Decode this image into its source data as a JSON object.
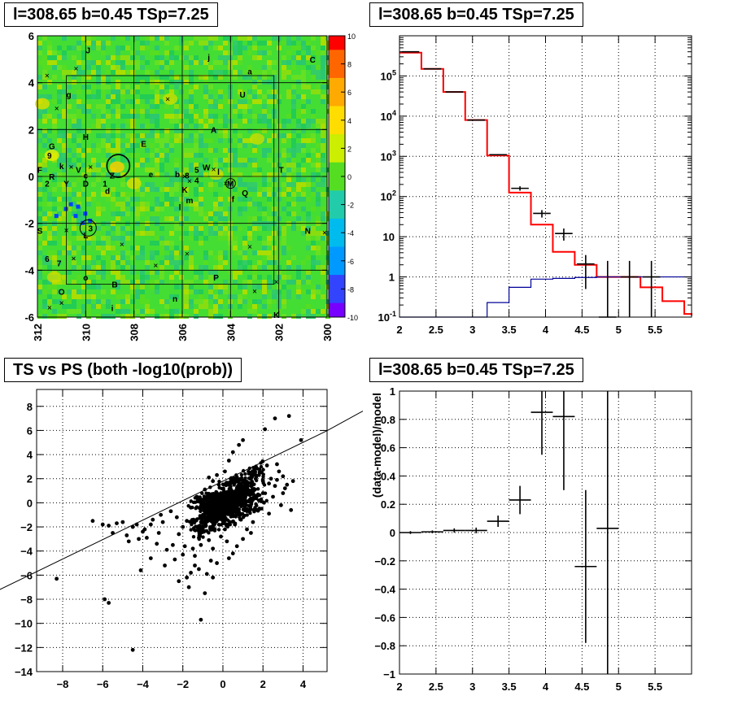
{
  "panels": {
    "sky_title": "l=308.65 b=0.45 TSp=7.25",
    "spectrum_title": "l=308.65 b=0.45 TSp=7.25",
    "scatter_title": "TS vs PS (both -log10(prob))",
    "residual_title": "l=308.65 b=0.45 TSp=7.25"
  },
  "colors": {
    "model": "#ff0000",
    "background_model": "#000099",
    "data": "#000000"
  },
  "chart_data": [
    {
      "type": "heatmap",
      "title": "l=308.65 b=0.45 TSp=7.25",
      "x_ticks": [
        "312",
        "310",
        "308",
        "306",
        "304",
        "302",
        "300"
      ],
      "xlim": [
        312,
        300
      ],
      "y_ticks": [
        "6",
        "4",
        "2",
        "0",
        "-2",
        "-4",
        "-6"
      ],
      "ylim": [
        -6,
        6
      ],
      "colorbar_ticks": [
        "10",
        "8",
        "6",
        "4",
        "2",
        "0",
        "-2",
        "-4",
        "-6",
        "-8",
        "-10"
      ],
      "zlim": [
        -10,
        10
      ],
      "grid": true,
      "labels": [
        {
          "t": "J",
          "l": 309.9,
          "b": 5.4
        },
        {
          "t": "j",
          "l": 304.9,
          "b": 5.1
        },
        {
          "t": "C",
          "l": 300.6,
          "b": 5.0
        },
        {
          "t": "a",
          "l": 303.2,
          "b": 4.5
        },
        {
          "t": "g",
          "l": 310.7,
          "b": 3.5
        },
        {
          "t": "U",
          "l": 303.5,
          "b": 3.5
        },
        {
          "t": "A",
          "l": 304.7,
          "b": 2.0
        },
        {
          "t": "H",
          "l": 310.0,
          "b": 1.7
        },
        {
          "t": "E",
          "l": 307.6,
          "b": 1.4
        },
        {
          "t": "G",
          "l": 311.4,
          "b": 1.3
        },
        {
          "t": "9",
          "l": 311.5,
          "b": 0.9
        },
        {
          "t": "F",
          "l": 311.9,
          "b": 0.3
        },
        {
          "t": "k",
          "l": 311.0,
          "b": 0.45
        },
        {
          "t": "V",
          "l": 310.3,
          "b": 0.3
        },
        {
          "t": "W",
          "l": 305.0,
          "b": 0.4
        },
        {
          "t": "5",
          "l": 305.4,
          "b": 0.3
        },
        {
          "t": "T",
          "l": 301.9,
          "b": 0.3
        },
        {
          "t": "R",
          "l": 311.4,
          "b": 0.0
        },
        {
          "t": "c",
          "l": 310.0,
          "b": 0.05
        },
        {
          "t": "Z",
          "l": 308.9,
          "b": 0.05
        },
        {
          "t": "e",
          "l": 307.3,
          "b": 0.1
        },
        {
          "t": "b",
          "l": 306.2,
          "b": 0.1
        },
        {
          "t": "8",
          "l": 305.8,
          "b": 0.05
        },
        {
          "t": "l",
          "l": 304.5,
          "b": 0.2
        },
        {
          "t": "4",
          "l": 305.4,
          "b": -0.15
        },
        {
          "t": "2",
          "l": 311.6,
          "b": -0.3
        },
        {
          "t": "Y",
          "l": 310.8,
          "b": -0.3
        },
        {
          "t": "D",
          "l": 310.0,
          "b": -0.3
        },
        {
          "t": "1",
          "l": 309.2,
          "b": -0.3
        },
        {
          "t": "M",
          "l": 304.0,
          "b": -0.3
        },
        {
          "t": "d",
          "l": 309.1,
          "b": -0.6
        },
        {
          "t": "K",
          "l": 305.9,
          "b": -0.55
        },
        {
          "t": "Q",
          "l": 303.4,
          "b": -0.7
        },
        {
          "t": "m",
          "l": 305.7,
          "b": -1.0
        },
        {
          "t": "f",
          "l": 303.9,
          "b": -0.95
        },
        {
          "t": "l",
          "l": 306.1,
          "b": -1.3
        },
        {
          "t": "S",
          "l": 311.9,
          "b": -2.3
        },
        {
          "t": "3",
          "l": 309.8,
          "b": -2.2
        },
        {
          "t": "N",
          "l": 300.8,
          "b": -2.3
        },
        {
          "t": "L",
          "l": 310.0,
          "b": -2.5
        },
        {
          "t": "6",
          "l": 311.6,
          "b": -3.5
        },
        {
          "t": "7",
          "l": 311.1,
          "b": -3.7
        },
        {
          "t": "o",
          "l": 310.0,
          "b": -4.3
        },
        {
          "t": "B",
          "l": 308.8,
          "b": -4.6
        },
        {
          "t": "P",
          "l": 304.6,
          "b": -4.3
        },
        {
          "t": "O",
          "l": 311.0,
          "b": -4.9
        },
        {
          "t": "n",
          "l": 306.3,
          "b": -5.2
        },
        {
          "t": "i",
          "l": 308.9,
          "b": -5.6
        },
        {
          "t": "K",
          "l": 302.1,
          "b": -5.9
        }
      ]
    },
    {
      "type": "line",
      "title": "l=308.65 b=0.45 TSp=7.25",
      "x_ticks": [
        "2",
        "2.5",
        "3",
        "3.5",
        "4",
        "4.5",
        "5",
        "5.5"
      ],
      "xlim": [
        2,
        6
      ],
      "y_ticks": [
        "10^5",
        "10^4",
        "10^3",
        "10^2",
        "10",
        "1",
        "10^-1"
      ],
      "ylim": [
        0.1,
        1000000
      ],
      "y_scale": "log",
      "grid": true,
      "series": [
        {
          "role": "model",
          "edges": [
            2.0,
            2.3,
            2.6,
            2.9,
            3.2,
            3.5,
            3.8,
            4.1,
            4.4,
            4.7,
            5.0,
            5.3,
            5.6,
            5.9,
            6.0
          ],
          "values": [
            380000,
            150000,
            40000,
            8000,
            1050,
            125,
            20,
            4.2,
            2.0,
            1.0,
            1.0,
            0.55,
            0.25,
            0.12,
            0.11
          ]
        },
        {
          "role": "background_model",
          "edges": [
            2.0,
            2.9,
            3.2,
            3.5,
            3.8,
            4.1,
            4.4,
            4.7,
            5.0,
            5.3,
            5.6,
            6.0
          ],
          "values": [
            0.08,
            0.08,
            0.23,
            0.55,
            0.88,
            0.92,
            0.97,
            1.0,
            1.0,
            1.0,
            1.0,
            1.0
          ]
        },
        {
          "role": "data",
          "points": [
            {
              "x": 2.15,
              "y": 400000,
              "lo": 395000,
              "hi": 405000
            },
            {
              "x": 2.45,
              "y": 150000,
              "lo": 148000,
              "hi": 152000
            },
            {
              "x": 2.75,
              "y": 40000,
              "lo": 39500,
              "hi": 40500
            },
            {
              "x": 3.05,
              "y": 8000,
              "lo": 7900,
              "hi": 8100
            },
            {
              "x": 3.35,
              "y": 1100,
              "lo": 1060,
              "hi": 1140
            },
            {
              "x": 3.65,
              "y": 160,
              "lo": 140,
              "hi": 180
            },
            {
              "x": 3.95,
              "y": 38,
              "lo": 30,
              "hi": 46
            },
            {
              "x": 4.25,
              "y": 12,
              "lo": 8,
              "hi": 16
            },
            {
              "x": 4.55,
              "y": 2.1,
              "lo": 0.5,
              "hi": 3.5
            },
            {
              "x": 4.85,
              "y": 0.1,
              "lo": 0.1,
              "hi": 2.5
            },
            {
              "x": 5.15,
              "y": 1.0,
              "lo": 0.1,
              "hi": 2.5
            },
            {
              "x": 5.45,
              "y": 1.0,
              "lo": 0.1,
              "hi": 2.5
            }
          ]
        }
      ]
    },
    {
      "type": "scatter",
      "title": "TS vs PS (both -log10(prob))",
      "x_ticks": [
        "-8",
        "-6",
        "-4",
        "-2",
        "0",
        "2",
        "4"
      ],
      "xlim": [
        -9.3,
        5.2
      ],
      "y_ticks": [
        "8",
        "6",
        "4",
        "2",
        "0",
        "-2",
        "-4",
        "-6",
        "-8",
        "-10",
        "-12",
        "-14"
      ],
      "ylim": [
        -14,
        9.4
      ],
      "grid": true,
      "fit_line": {
        "slope": 0.9,
        "intercept": 1.3
      },
      "points": [
        [
          -8.3,
          -6.3
        ],
        [
          -6.5,
          -1.5
        ],
        [
          -6,
          -1.8
        ],
        [
          -5.7,
          -1.9
        ],
        [
          -5.3,
          -1.7
        ],
        [
          -5.5,
          -2.5
        ],
        [
          -5,
          -1.6
        ],
        [
          -4.8,
          -2.7
        ],
        [
          -4.5,
          -2.0
        ],
        [
          -4.3,
          -1.8
        ],
        [
          -4.7,
          -3.2
        ],
        [
          -4.2,
          -3.0
        ],
        [
          -3.9,
          -2.2
        ],
        [
          -3.6,
          -1.8
        ],
        [
          -3.5,
          -1.4
        ],
        [
          -5.9,
          -8
        ],
        [
          -5.7,
          -8.3
        ],
        [
          -4.5,
          -12.2
        ],
        [
          -4.1,
          -5.6
        ],
        [
          -3.6,
          -4.6
        ],
        [
          -3.2,
          -2.5
        ],
        [
          -3.0,
          -1.6
        ],
        [
          -2.8,
          -3.9
        ],
        [
          -2.5,
          -3.5
        ],
        [
          -2.3,
          -1.2
        ],
        [
          -2.2,
          -6.5
        ],
        [
          -1.8,
          -6.2
        ],
        [
          -1.7,
          -7.0
        ],
        [
          -1.6,
          -5.8
        ],
        [
          -1.4,
          -5.2
        ],
        [
          -1.1,
          -9.7
        ],
        [
          -0.9,
          -7.5
        ],
        [
          -0.8,
          -5.9
        ],
        [
          -0.5,
          -6.2
        ],
        [
          -0.3,
          -5.0
        ],
        [
          -1.5,
          -3.8
        ],
        [
          -1.2,
          -2.9
        ],
        [
          -2.0,
          -2.0
        ],
        [
          -1.8,
          -1.5
        ],
        [
          -1.0,
          -1.0
        ],
        [
          -0.8,
          -0.5
        ],
        [
          -0.6,
          -1.2
        ],
        [
          -0.4,
          -0.3
        ],
        [
          -0.2,
          -0.8
        ],
        [
          0.0,
          0.0
        ],
        [
          0.2,
          0.4
        ],
        [
          0.4,
          -0.2
        ],
        [
          0.6,
          0.8
        ],
        [
          0.8,
          1.2
        ],
        [
          1.0,
          0.6
        ],
        [
          1.2,
          1.5
        ],
        [
          1.4,
          2.0
        ],
        [
          1.6,
          2.8
        ],
        [
          1.8,
          2.3
        ],
        [
          2.0,
          1.8
        ],
        [
          2.2,
          3.1
        ],
        [
          2.4,
          2.0
        ],
        [
          2.6,
          1.4
        ],
        [
          2.8,
          2.6
        ],
        [
          3.0,
          0.8
        ],
        [
          3.2,
          1.5
        ],
        [
          0.3,
          3.5
        ],
        [
          0.5,
          4.2
        ],
        [
          0.8,
          4.8
        ],
        [
          1.0,
          5.2
        ],
        [
          2.1,
          6.1
        ],
        [
          3.3,
          7.2
        ],
        [
          2.6,
          7.0
        ],
        [
          3.9,
          5.2
        ],
        [
          -0.3,
          2.3
        ],
        [
          -0.5,
          1.8
        ],
        [
          -0.7,
          2.1
        ],
        [
          0.1,
          2.6
        ],
        [
          -0.1,
          -2.8
        ],
        [
          0.2,
          -3.2
        ],
        [
          0.5,
          -4.2
        ],
        [
          0.7,
          -3.6
        ],
        [
          1.2,
          -2.2
        ],
        [
          1.5,
          -1.6
        ],
        [
          -1.3,
          0.5
        ],
        [
          -1.6,
          -0.4
        ],
        [
          -0.9,
          1.1
        ],
        [
          0.9,
          -1.4
        ],
        [
          1.7,
          -0.6
        ],
        [
          2.3,
          -0.9
        ],
        [
          -2.6,
          -0.7
        ],
        [
          -3.1,
          -1.0
        ],
        [
          -2.2,
          -2.6
        ],
        [
          -1.9,
          -3.6
        ],
        [
          -1.4,
          -4.4
        ],
        [
          -0.6,
          -4.8
        ],
        [
          0.3,
          -4.6
        ],
        [
          1.0,
          -3.0
        ],
        [
          1.4,
          -2.5
        ],
        [
          0.6,
          -1.8
        ],
        [
          -0.2,
          1.5
        ],
        [
          0.4,
          1.0
        ],
        [
          1.1,
          -0.4
        ],
        [
          1.8,
          0.2
        ],
        [
          2.5,
          0.5
        ],
        [
          2.9,
          -0.2
        ],
        [
          3.4,
          -0.6
        ],
        [
          3.1,
          1.2
        ],
        [
          2.7,
          3.2
        ],
        [
          3.5,
          1.8
        ],
        [
          0.0,
          -1.5
        ],
        [
          -0.4,
          -2.2
        ],
        [
          -0.7,
          -3.1
        ],
        [
          -1.1,
          -3.5
        ],
        [
          -2.0,
          -4.3
        ],
        [
          -2.4,
          -4.7
        ],
        [
          -2.9,
          -5.2
        ],
        [
          -3.3,
          -3.4
        ],
        [
          -3.8,
          -2.9
        ],
        [
          -4.0,
          -2.4
        ],
        [
          -1.2,
          -5.5
        ],
        [
          -0.5,
          -3.8
        ],
        [
          0.1,
          -2.2
        ],
        [
          0.9,
          0.4
        ],
        [
          1.3,
          0.9
        ],
        [
          1.6,
          1.1
        ],
        [
          2.0,
          0.8
        ],
        [
          2.3,
          1.6
        ],
        [
          2.7,
          1.9
        ],
        [
          3.0,
          2.2
        ],
        [
          -0.1,
          0.8
        ],
        [
          0.2,
          -0.6
        ],
        [
          0.5,
          0.3
        ],
        [
          0.7,
          -0.9
        ],
        [
          -0.3,
          -0.5
        ]
      ]
    },
    {
      "type": "line",
      "title": "l=308.65 b=0.45 TSp=7.25",
      "ylabel": "(data-model)/model",
      "x_ticks": [
        "2",
        "2.5",
        "3",
        "3.5",
        "4",
        "4.5",
        "5",
        "5.5"
      ],
      "xlim": [
        2,
        6
      ],
      "y_ticks": [
        "1",
        "0.8",
        "0.6",
        "0.4",
        "0.2",
        "0",
        "-0.2",
        "-0.4",
        "-0.6",
        "-0.8",
        "-1"
      ],
      "ylim": [
        -1,
        1
      ],
      "grid": true,
      "points": [
        {
          "x": 2.15,
          "y": 0.0,
          "xlo": 2.0,
          "xhi": 2.3,
          "ylo": -0.01,
          "yhi": 0.01
        },
        {
          "x": 2.45,
          "y": 0.005,
          "xlo": 2.3,
          "xhi": 2.6,
          "ylo": -0.005,
          "yhi": 0.015
        },
        {
          "x": 2.75,
          "y": 0.015,
          "xlo": 2.6,
          "xhi": 2.9,
          "ylo": 0.0,
          "yhi": 0.03
        },
        {
          "x": 3.05,
          "y": 0.015,
          "xlo": 2.9,
          "xhi": 3.2,
          "ylo": -0.005,
          "yhi": 0.035
        },
        {
          "x": 3.35,
          "y": 0.08,
          "xlo": 3.2,
          "xhi": 3.5,
          "ylo": 0.04,
          "yhi": 0.12
        },
        {
          "x": 3.65,
          "y": 0.23,
          "xlo": 3.5,
          "xhi": 3.8,
          "ylo": 0.13,
          "yhi": 0.33
        },
        {
          "x": 3.95,
          "y": 0.85,
          "xlo": 3.8,
          "xhi": 4.1,
          "ylo": 0.55,
          "yhi": 1.0
        },
        {
          "x": 4.25,
          "y": 0.82,
          "xlo": 4.1,
          "xhi": 4.4,
          "ylo": 0.3,
          "yhi": 1.0
        },
        {
          "x": 4.55,
          "y": -0.24,
          "xlo": 4.4,
          "xhi": 4.7,
          "ylo": -0.78,
          "yhi": 0.3
        },
        {
          "x": 4.85,
          "y": 0.03,
          "xlo": 4.7,
          "xhi": 5.0,
          "ylo": -1.0,
          "yhi": 1.0
        }
      ]
    }
  ]
}
